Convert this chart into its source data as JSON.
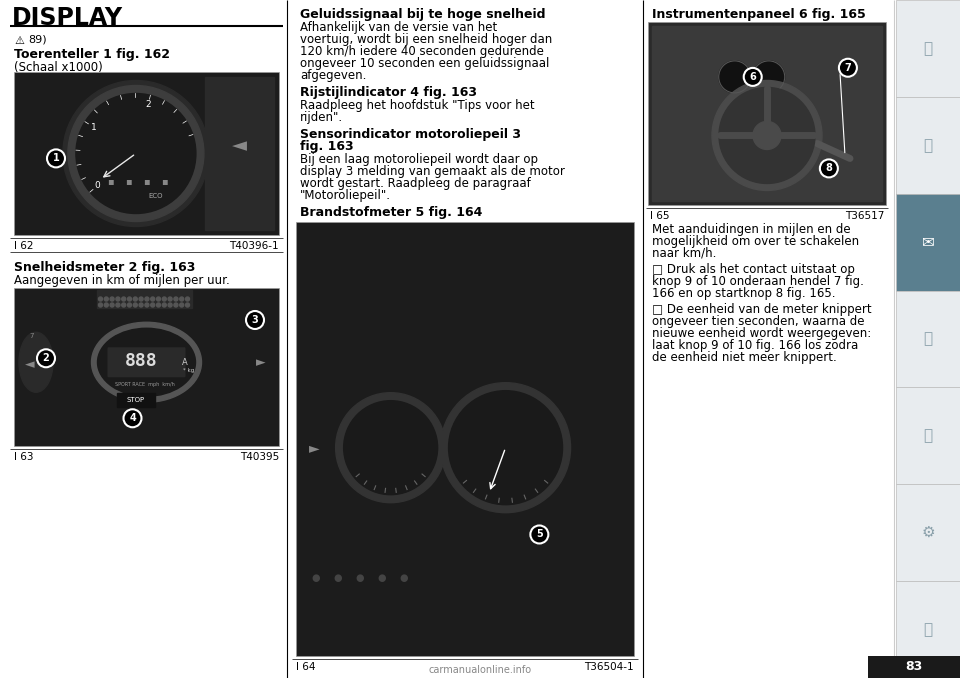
{
  "page_bg": "#ffffff",
  "title": "DISPLAY",
  "page_number": "83",
  "warning_num": "89)",
  "section1_title": "Toerenteller 1 fig. 162",
  "section1_sub": "(Schaal x1000)",
  "fig162_caption": "l 62",
  "fig162_tag": "T40396-1",
  "section2_title": "Snelheidsmeter 2 fig. 163",
  "section2_sub": "Aangegeven in km of mijlen per uur.",
  "fig163_caption": "l 63",
  "fig163_tag": "T40395",
  "mid_title1": "Geluidssignaal bij te hoge snelheid",
  "mid_body1": "Afhankelijk van de versie van het voertuig, wordt bij een snelheid hoger dan 120 km/h iedere 40 seconden gedurende ongeveer 10 seconden een geluidssignaal afgegeven.",
  "mid_title2": "Rijstijlindicator 4 fig. 163",
  "mid_body2": "Raadpleeg het hoofdstuk \"Tips voor het rijden\".",
  "mid_title3a": "Sensorindicator motoroliepeil 3",
  "mid_title3b": "fig. 163",
  "mid_body3": "Bij een laag motoroliepeil wordt daar op display 3 melding van gemaakt als de motor wordt gestart. Raadpleeg de paragraaf \"Motoroliepeil\".",
  "mid_title4": "Brandstofmeter 5 fig. 164",
  "right_title": "Instrumentenpaneel 6 fig. 165",
  "fig165_caption": "l 65",
  "fig165_tag": "T36517",
  "right_body1": "Met aanduidingen in mijlen en de mogelijkheid om over te schakelen naar km/h.",
  "right_body2": "□ Druk als het contact uitstaat op knop 9 of 10 onderaan hendel 7 fig. 166 en op startknop 8 fig. 165.",
  "right_body3": "□ De eenheid van de meter knippert ongeveer tien seconden, waarna de nieuwe eenheid wordt weergegeven: laat knop 9 of 10 fig. 166 los zodra de eenheid niet meer knippert.",
  "fig164_caption": "l 64",
  "fig164_tag": "T36504-1",
  "sidebar_bg": "#5a7f8f",
  "sidebar_light_bg": "#e8ecef",
  "sidebar_active_idx": 2
}
